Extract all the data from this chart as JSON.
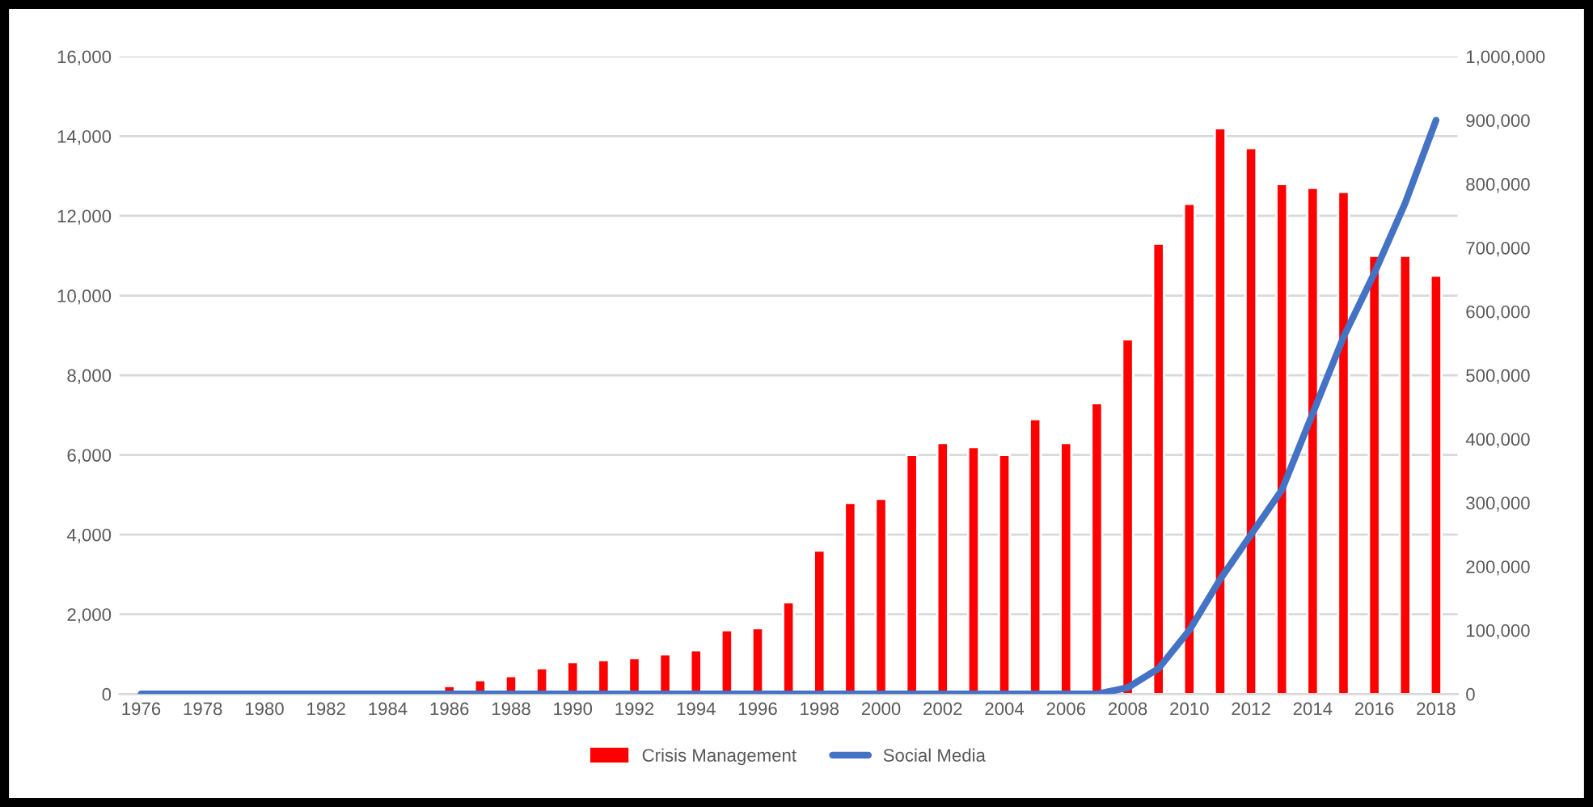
{
  "chart_data": {
    "type": "bar",
    "categories": [
      "1976",
      null,
      "1978",
      null,
      "1980",
      null,
      "1982",
      null,
      "1984",
      null,
      "1986",
      null,
      "1988",
      null,
      "1990",
      null,
      "1992",
      null,
      "1994",
      null,
      "1996",
      null,
      "1998",
      null,
      "2000",
      null,
      "2002",
      null,
      "2004",
      null,
      "2006",
      null,
      "2008",
      null,
      "2010",
      null,
      "2012",
      null,
      "2014",
      null,
      "2016",
      null,
      "2018"
    ],
    "series": [
      {
        "name": "Crisis Management",
        "color": "#ff0000",
        "values": [
          null,
          null,
          null,
          null,
          null,
          null,
          null,
          null,
          null,
          null,
          200,
          350,
          450,
          650,
          800,
          850,
          900,
          1000,
          1100,
          1600,
          1650,
          2300,
          3600,
          4800,
          4900,
          6000,
          6300,
          6200,
          6000,
          6900,
          6300,
          7300,
          8900,
          11300,
          12300,
          14200,
          13700,
          12800,
          12700,
          12600,
          11000,
          11000,
          10500
        ]
      },
      {
        "name": "Social Media",
        "type": "line",
        "axis": "y2",
        "color": "#4472c4",
        "values": [
          0,
          0,
          0,
          0,
          0,
          0,
          0,
          0,
          0,
          0,
          0,
          0,
          0,
          0,
          0,
          0,
          0,
          0,
          0,
          0,
          0,
          0,
          0,
          0,
          0,
          0,
          0,
          0,
          0,
          0,
          0,
          0,
          10000,
          40000,
          100000,
          180000,
          250000,
          320000,
          440000,
          560000,
          660000,
          770000,
          900000
        ]
      }
    ],
    "ylim": [
      0,
      16000
    ],
    "yticks": [
      0,
      {
        "value": 2000,
        "label": "2,000"
      },
      {
        "value": 4000,
        "label": "4,000"
      },
      {
        "value": 6000,
        "label": "6,000"
      },
      {
        "value": 8000,
        "label": "8,000"
      },
      {
        "value": 10000,
        "label": "10,000"
      },
      {
        "value": 12000,
        "label": "12,000"
      },
      {
        "value": 14000,
        "label": "14,000"
      },
      {
        "value": 16000,
        "label": "16,000"
      }
    ],
    "y2lim": [
      0,
      1000000
    ],
    "y2ticks": [
      0,
      {
        "value": 100000,
        "label": "100,000"
      },
      {
        "value": 200000,
        "label": "200,000"
      },
      {
        "value": 300000,
        "label": "300,000"
      },
      {
        "value": 400000,
        "label": "400,000"
      },
      {
        "value": 500000,
        "label": "500,000"
      },
      {
        "value": 600000,
        "label": "600,000"
      },
      {
        "value": 700000,
        "label": "700,000"
      },
      {
        "value": 800000,
        "label": "800,000"
      },
      {
        "value": 900000,
        "label": "900,000"
      },
      {
        "value": 1000000,
        "label": "1,000,000"
      }
    ],
    "grid": "y",
    "legend": "bottom"
  }
}
